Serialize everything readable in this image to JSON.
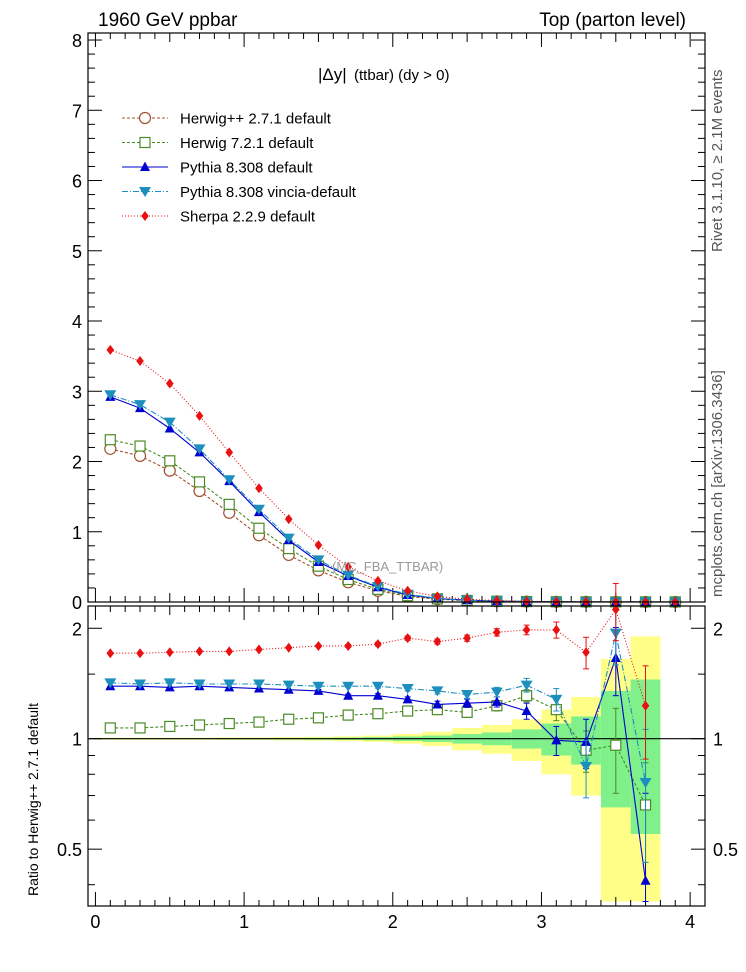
{
  "header": {
    "left": "1960 GeV ppbar",
    "right": "Top (parton level)"
  },
  "side": {
    "rivet": "Rivet 3.1.10, ≥ 2.1M events",
    "mcplots": "mcplots.cern.ch [arXiv:1306.3436]"
  },
  "plot_title": {
    "main": "|Δy|",
    "sub": "(ttbar) (dy > 0)"
  },
  "watermark": "(MC_FBA_TTBAR)",
  "ratio_ylabel": "Ratio to Herwig++ 2.7.1 default",
  "chart_data": [
    {
      "type": "line",
      "title": "|Δy| (ttbar) (dy > 0)",
      "xlabel": "",
      "ylabel": "",
      "xlim": [
        -0.05,
        4.1
      ],
      "ylim": [
        0,
        8.1
      ],
      "xticks": [
        "0",
        "1",
        "2",
        "3",
        "4"
      ],
      "yticks": [
        "0",
        "1",
        "2",
        "3",
        "4",
        "5",
        "6",
        "7",
        "8"
      ],
      "legend": "top-left",
      "x": [
        0.1,
        0.3,
        0.5,
        0.7,
        0.9,
        1.1,
        1.3,
        1.5,
        1.7,
        1.9,
        2.1,
        2.3,
        2.5,
        2.7,
        2.9,
        3.1,
        3.3,
        3.5,
        3.7,
        3.9
      ],
      "series": [
        {
          "name": "Herwig++ 2.7.1 default",
          "color": "#a0522d",
          "marker": "circle-open",
          "dash": "3,2",
          "values": [
            2.18,
            2.08,
            1.87,
            1.58,
            1.27,
            0.95,
            0.67,
            0.45,
            0.28,
            0.16,
            0.08,
            0.04,
            0.02,
            0.01,
            0.006,
            0.003,
            0.002,
            0.001,
            0.001,
            0.001
          ]
        },
        {
          "name": "Herwig 7.2.1 default",
          "color": "#4b8b26",
          "marker": "square-open",
          "dash": "3,2",
          "values": [
            2.31,
            2.22,
            2.01,
            1.71,
            1.39,
            1.05,
            0.76,
            0.51,
            0.32,
            0.18,
            0.09,
            0.045,
            0.022,
            0.011,
            0.006,
            0.003,
            0.002,
            0.001,
            0.001,
            0.001
          ]
        },
        {
          "name": "Pythia 8.308 default",
          "color": "#0000d0",
          "marker": "triangle-up",
          "dash": "",
          "values": [
            2.92,
            2.76,
            2.47,
            2.13,
            1.72,
            1.28,
            0.88,
            0.57,
            0.37,
            0.21,
            0.1,
            0.05,
            0.025,
            0.012,
            0.006,
            0.003,
            0.002,
            0.001,
            0.001,
            0.0
          ]
        },
        {
          "name": "Pythia 8.308 vincia-default",
          "color": "#1c8fbf",
          "marker": "triangle-down",
          "dash": "6,2,1,2",
          "values": [
            2.95,
            2.81,
            2.56,
            2.18,
            1.74,
            1.32,
            0.91,
            0.6,
            0.38,
            0.22,
            0.11,
            0.052,
            0.026,
            0.013,
            0.007,
            0.004,
            0.002,
            0.001,
            0.001,
            0.0
          ]
        },
        {
          "name": "Sherpa 2.2.9 default",
          "color": "#e81010",
          "marker": "diamond",
          "dash": "1,2",
          "values": [
            3.59,
            3.43,
            3.11,
            2.65,
            2.13,
            1.62,
            1.18,
            0.81,
            0.5,
            0.3,
            0.16,
            0.08,
            0.04,
            0.02,
            0.01,
            0.006,
            0.004,
            0.002,
            0.001,
            0.001
          ]
        }
      ]
    },
    {
      "type": "line",
      "title": "",
      "xlabel": "",
      "ylabel": "Ratio to Herwig++ 2.7.1 default",
      "xlim": [
        -0.05,
        4.1
      ],
      "ylim": [
        0.35,
        2.3
      ],
      "xticks": [
        "0",
        "1",
        "2",
        "3",
        "4"
      ],
      "yticks": [
        "0.5",
        "1",
        "2"
      ],
      "reference_line": 1,
      "x": [
        0.1,
        0.3,
        0.5,
        0.7,
        0.9,
        1.1,
        1.3,
        1.5,
        1.7,
        1.9,
        2.1,
        2.3,
        2.5,
        2.7,
        2.9,
        3.1,
        3.3,
        3.5,
        3.7
      ],
      "uncertainty_bands": {
        "x_edges": [
          0.0,
          0.2,
          0.4,
          0.6,
          0.8,
          1.0,
          1.2,
          1.4,
          1.6,
          1.8,
          2.0,
          2.2,
          2.4,
          2.6,
          2.8,
          3.0,
          3.2,
          3.4,
          3.6,
          3.8
        ],
        "green_half_width": [
          0.003,
          0.003,
          0.003,
          0.003,
          0.004,
          0.004,
          0.005,
          0.006,
          0.007,
          0.01,
          0.014,
          0.02,
          0.03,
          0.04,
          0.06,
          0.1,
          0.15,
          0.35,
          0.45
        ],
        "yellow_half_width": [
          0.006,
          0.006,
          0.006,
          0.006,
          0.008,
          0.008,
          0.01,
          0.012,
          0.015,
          0.02,
          0.03,
          0.045,
          0.07,
          0.09,
          0.13,
          0.2,
          0.3,
          0.65,
          0.9
        ]
      },
      "series": [
        {
          "name": "Herwig 7.2.1 default",
          "color": "#4b8b26",
          "marker": "square-open",
          "dash": "3,2",
          "values": [
            1.07,
            1.07,
            1.08,
            1.09,
            1.1,
            1.11,
            1.13,
            1.14,
            1.16,
            1.17,
            1.19,
            1.2,
            1.18,
            1.23,
            1.31,
            1.2,
            0.93,
            0.96,
            0.66
          ],
          "errors": [
            0.005,
            0.005,
            0.005,
            0.005,
            0.006,
            0.007,
            0.008,
            0.01,
            0.012,
            0.015,
            0.02,
            0.025,
            0.03,
            0.04,
            0.05,
            0.08,
            0.12,
            0.25,
            0.2
          ]
        },
        {
          "name": "Pythia 8.308 default",
          "color": "#0000d0",
          "marker": "triangle-up",
          "dash": "",
          "values": [
            1.39,
            1.39,
            1.38,
            1.39,
            1.38,
            1.37,
            1.36,
            1.35,
            1.31,
            1.31,
            1.28,
            1.24,
            1.25,
            1.26,
            1.19,
            0.99,
            0.98,
            1.66,
            0.41
          ],
          "errors": [
            0.006,
            0.006,
            0.006,
            0.006,
            0.007,
            0.008,
            0.009,
            0.011,
            0.013,
            0.016,
            0.02,
            0.026,
            0.032,
            0.04,
            0.06,
            0.09,
            0.15,
            0.35,
            0.3
          ]
        },
        {
          "name": "Pythia 8.308 vincia-default",
          "color": "#1c8fbf",
          "marker": "triangle-down",
          "dash": "6,2,1,2",
          "values": [
            1.42,
            1.41,
            1.42,
            1.41,
            1.41,
            1.41,
            1.4,
            1.39,
            1.39,
            1.39,
            1.37,
            1.35,
            1.32,
            1.34,
            1.4,
            1.28,
            0.84,
            1.94,
            0.76
          ],
          "errors": [
            0.006,
            0.006,
            0.006,
            0.006,
            0.007,
            0.008,
            0.009,
            0.011,
            0.013,
            0.016,
            0.02,
            0.026,
            0.032,
            0.04,
            0.06,
            0.09,
            0.15,
            0.35,
            0.3
          ]
        },
        {
          "name": "Sherpa 2.2.9 default",
          "color": "#e81010",
          "marker": "diamond",
          "dash": "1,2",
          "values": [
            1.71,
            1.71,
            1.72,
            1.73,
            1.73,
            1.75,
            1.77,
            1.79,
            1.79,
            1.81,
            1.88,
            1.84,
            1.88,
            1.95,
            1.98,
            1.98,
            1.72,
            2.25,
            1.23
          ],
          "errors": [
            0.007,
            0.007,
            0.007,
            0.007,
            0.008,
            0.009,
            0.01,
            0.012,
            0.015,
            0.02,
            0.025,
            0.03,
            0.036,
            0.045,
            0.06,
            0.1,
            0.17,
            0.4,
            0.35
          ]
        }
      ]
    }
  ]
}
